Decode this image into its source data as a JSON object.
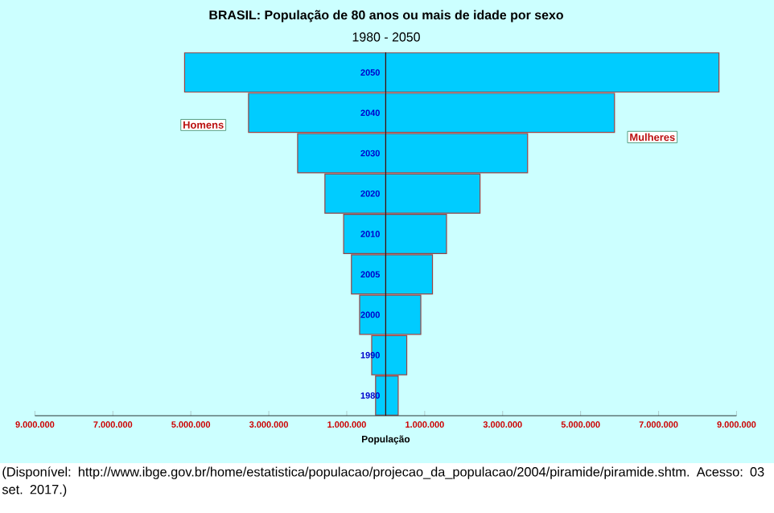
{
  "chart_data": {
    "type": "bar",
    "orientation": "horizontal",
    "stacked": true,
    "title": "BRASIL: População de 80 anos ou mais de idade por sexo",
    "subtitle": "1980 - 2050",
    "xlabel": "População",
    "categories": [
      "2050",
      "2040",
      "2030",
      "2020",
      "2010",
      "2005",
      "2000",
      "1990",
      "1980"
    ],
    "series": [
      {
        "name": "Homens",
        "color": "#00ccff",
        "values": [
          -5160000,
          -3520000,
          -2260000,
          -1560000,
          -1080000,
          -880000,
          -670000,
          -360000,
          -260000
        ]
      },
      {
        "name": "Mulheres",
        "color": "#00ccff",
        "values": [
          8550000,
          5870000,
          3640000,
          2420000,
          1560000,
          1200000,
          900000,
          540000,
          320000
        ]
      }
    ],
    "xlim": [
      -9000000,
      9000000
    ],
    "xticks": [
      {
        "value": -9000000,
        "label": "9.000.000"
      },
      {
        "value": -7000000,
        "label": "7.000.000"
      },
      {
        "value": -5000000,
        "label": "5.000.000"
      },
      {
        "value": -3000000,
        "label": "3.000.000"
      },
      {
        "value": -1000000,
        "label": "1.000.000"
      },
      {
        "value": 1000000,
        "label": "1.000.000"
      },
      {
        "value": 3000000,
        "label": "3.000.000"
      },
      {
        "value": 5000000,
        "label": "5.000.000"
      },
      {
        "value": 7000000,
        "label": "7.000.000"
      },
      {
        "value": 9000000,
        "label": "9.000.000"
      }
    ],
    "annotations": [
      "(Disponível: http://www.ibge.gov.br/home/estatistica/populacao/projecao_da_populacao/2004/piramide/piramide.shtm. Acesso: 03 set. 2017.)"
    ]
  }
}
